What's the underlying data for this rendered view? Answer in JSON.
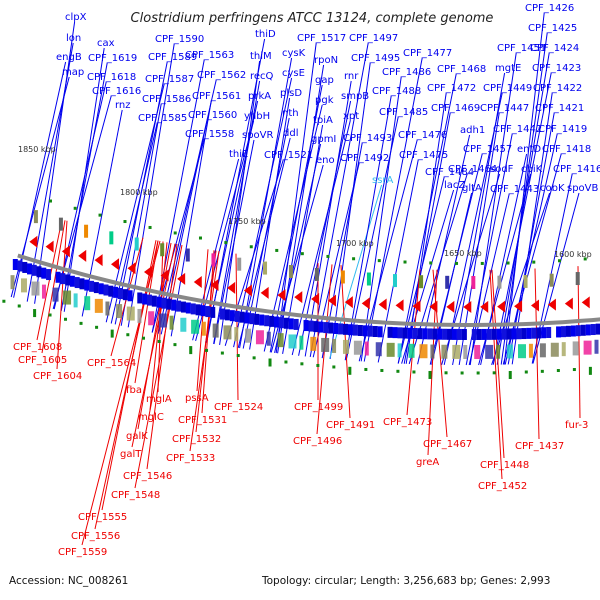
{
  "title": "Clostridium perfringens ATCC 13124, complete genome",
  "footer": {
    "accession": "Accession: NC_008261",
    "summary": "Topology: circular; Length: 3,256,683 bp; Genes: 2,993"
  },
  "colors": {
    "forward": "#0000ee",
    "reverse": "#ee0000",
    "rna": "#33bbee",
    "backbone": "#888888",
    "marker": "#118811"
  },
  "ticks": [
    "1850 kbp",
    "1800 kbp",
    "1750 kbp",
    "1700 kbp",
    "1650 kbp",
    "1600 kbp"
  ],
  "forward_labels": [
    {
      "text": "clpX"
    },
    {
      "text": "lon"
    },
    {
      "text": "engB"
    },
    {
      "text": "map"
    },
    {
      "text": "cax"
    },
    {
      "text": "CPF_1619"
    },
    {
      "text": "CPF_1618"
    },
    {
      "text": "CPF_1616"
    },
    {
      "text": "rnz"
    },
    {
      "text": "CPF_1590"
    },
    {
      "text": "CPF_1589"
    },
    {
      "text": "CPF_1587"
    },
    {
      "text": "CPF_1586"
    },
    {
      "text": "CPF_1585"
    },
    {
      "text": "CPF_1563"
    },
    {
      "text": "CPF_1562"
    },
    {
      "text": "CPF_1561"
    },
    {
      "text": "CPF_1560"
    },
    {
      "text": "CPF_1558"
    },
    {
      "text": "thiD"
    },
    {
      "text": "thiM"
    },
    {
      "text": "recQ"
    },
    {
      "text": "prkA"
    },
    {
      "text": "yhbH"
    },
    {
      "text": "spoVR"
    },
    {
      "text": "thiE"
    },
    {
      "text": "cysK"
    },
    {
      "text": "cysE"
    },
    {
      "text": "plsD"
    },
    {
      "text": "nth"
    },
    {
      "text": "ddl"
    },
    {
      "text": "CPF_1521"
    },
    {
      "text": "CPF_1517"
    },
    {
      "text": "rpoN"
    },
    {
      "text": "gap"
    },
    {
      "text": "pgk"
    },
    {
      "text": "tpiA"
    },
    {
      "text": "gpmI"
    },
    {
      "text": "eno"
    },
    {
      "text": "CPF_1497"
    },
    {
      "text": "CPF_1495"
    },
    {
      "text": "rnr"
    },
    {
      "text": "smpB"
    },
    {
      "text": "xpt"
    },
    {
      "text": "CPF_1493"
    },
    {
      "text": "CPF_1492"
    },
    {
      "text": "ssrA"
    },
    {
      "text": "CPF_1477"
    },
    {
      "text": "CPF_1486"
    },
    {
      "text": "CPF_1488"
    },
    {
      "text": "CPF_1485"
    },
    {
      "text": "CPF_1476"
    },
    {
      "text": "CPF_1475"
    },
    {
      "text": "CPF_1484"
    },
    {
      "text": "lacZ"
    },
    {
      "text": "CPF_1468"
    },
    {
      "text": "CPF_1472"
    },
    {
      "text": "CPF_1469"
    },
    {
      "text": "adh1"
    },
    {
      "text": "CPF_1464"
    },
    {
      "text": "gltA"
    },
    {
      "text": "CPF_1451"
    },
    {
      "text": "mgtE"
    },
    {
      "text": "CPF_1449"
    },
    {
      "text": "CPF_1447"
    },
    {
      "text": "CPF_1442"
    },
    {
      "text": "CPF_1457"
    },
    {
      "text": "sodF"
    },
    {
      "text": "CPF_1443"
    },
    {
      "text": "entD"
    },
    {
      "text": "cbiK"
    },
    {
      "text": "cobK"
    },
    {
      "text": "CPF_1426"
    },
    {
      "text": "CPF_1425"
    },
    {
      "text": "CPF_1424"
    },
    {
      "text": "CPF_1423"
    },
    {
      "text": "CPF_1422"
    },
    {
      "text": "CPF_1421"
    },
    {
      "text": "CPF_1419"
    },
    {
      "text": "CPF_1418"
    },
    {
      "text": "CPF_1416"
    },
    {
      "text": "spoVB"
    }
  ],
  "reverse_labels": [
    {
      "text": "CPF_1608"
    },
    {
      "text": "CPF_1605"
    },
    {
      "text": "CPF_1604"
    },
    {
      "text": "CPF_1564"
    },
    {
      "text": "fba"
    },
    {
      "text": "mglA"
    },
    {
      "text": "mglC"
    },
    {
      "text": "galK"
    },
    {
      "text": "galT"
    },
    {
      "text": "CPF_1546"
    },
    {
      "text": "CPF_1548"
    },
    {
      "text": "CPF_1555"
    },
    {
      "text": "CPF_1556"
    },
    {
      "text": "CPF_1559"
    },
    {
      "text": "pssA"
    },
    {
      "text": "CPF_1531"
    },
    {
      "text": "CPF_1532"
    },
    {
      "text": "CPF_1533"
    },
    {
      "text": "CPF_1524"
    },
    {
      "text": "CPF_1499"
    },
    {
      "text": "CPF_1496"
    },
    {
      "text": "CPF_1491"
    },
    {
      "text": "CPF_1473"
    },
    {
      "text": "CPF_1467"
    },
    {
      "text": "greA"
    },
    {
      "text": "CPF_1452"
    },
    {
      "text": "CPF_1448"
    },
    {
      "text": "CPF_1437"
    },
    {
      "text": "fur-3"
    }
  ]
}
